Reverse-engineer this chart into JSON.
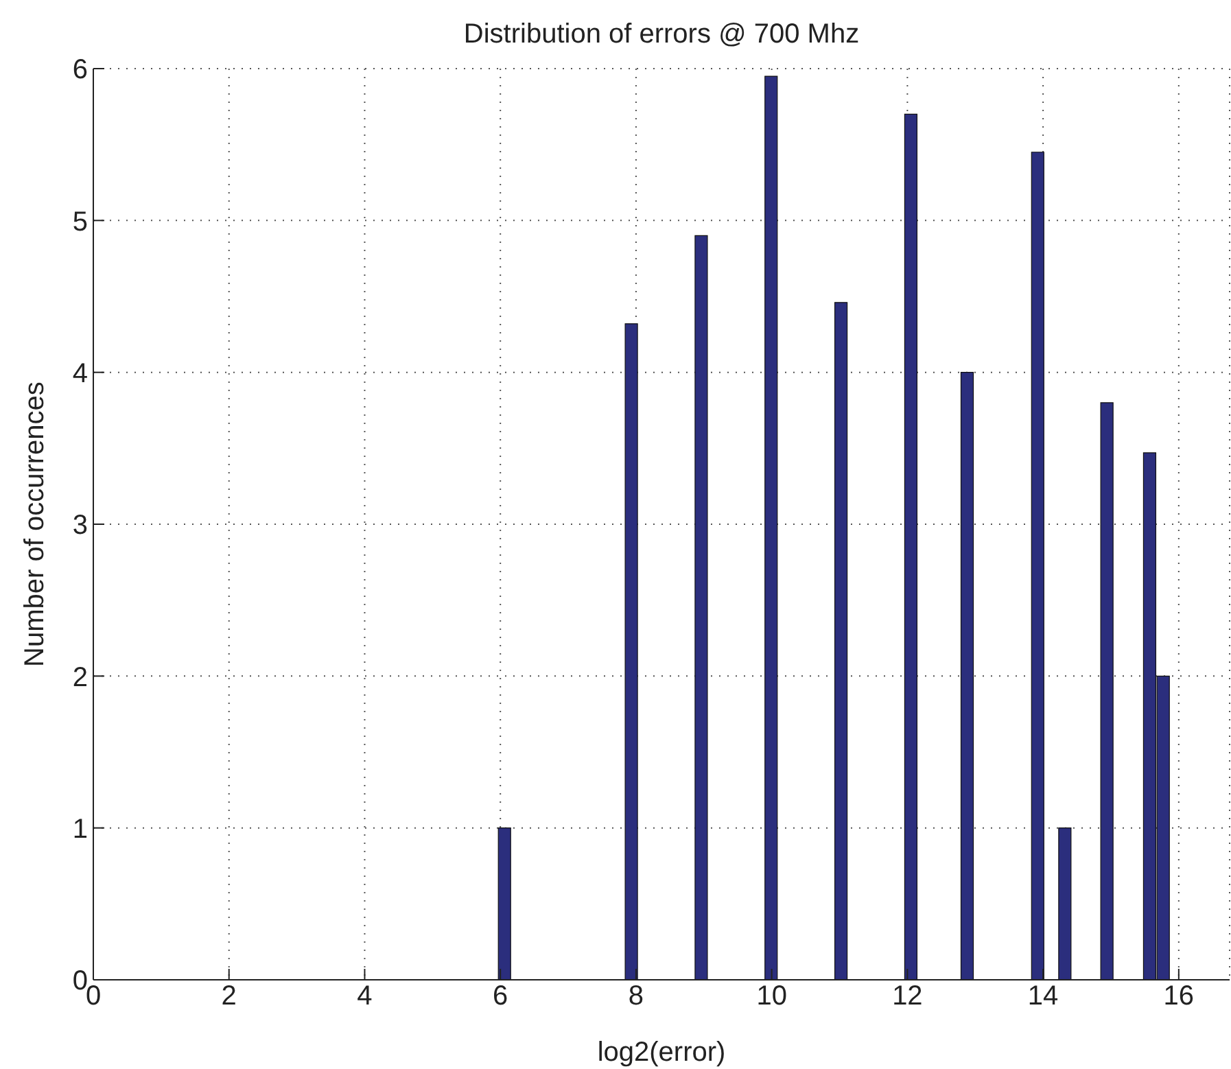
{
  "chart_data": {
    "type": "bar",
    "title": "Distribution of errors @ 700 Mhz",
    "xlabel": "log2(error)",
    "ylabel": "Number of occurrences",
    "x": [
      6.07,
      7.94,
      8.97,
      10.0,
      11.03,
      12.06,
      12.89,
      13.93,
      14.33,
      14.95,
      15.58,
      15.78
    ],
    "values": [
      1,
      4.32,
      4.9,
      5.95,
      4.46,
      5.7,
      4.0,
      5.45,
      1,
      3.8,
      3.47,
      2
    ],
    "color": "#2b2e7d",
    "xlim": [
      0,
      16.75
    ],
    "xticks": [
      0,
      2,
      4,
      6,
      8,
      10,
      12,
      14,
      16
    ],
    "ylim": [
      0,
      6
    ],
    "yticks": [
      0,
      1,
      2,
      3,
      4,
      5,
      6
    ],
    "grid": true
  }
}
